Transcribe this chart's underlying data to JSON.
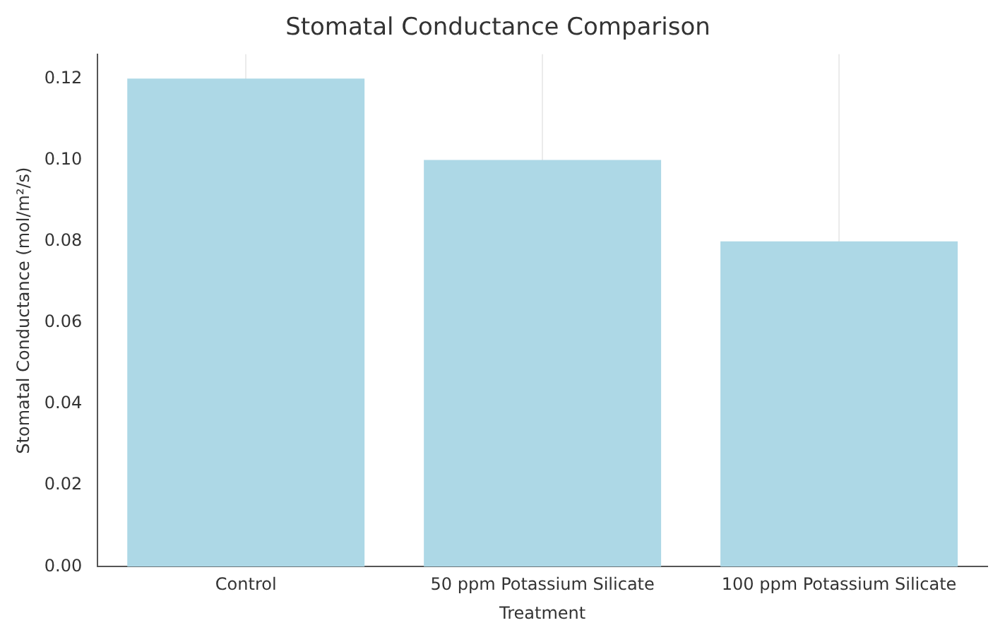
{
  "chart_data": {
    "type": "bar",
    "title": "Stomatal Conductance Comparison",
    "xlabel": "Treatment",
    "ylabel": "Stomatal Conductance (mol/m²/s)",
    "categories": [
      "Control",
      "50 ppm Potassium Silicate",
      "100 ppm Potassium Silicate"
    ],
    "values": [
      0.12,
      0.1,
      0.08
    ],
    "color": "#add8e6",
    "ylim": [
      0,
      0.126
    ],
    "yticks": [
      {
        "value": 0,
        "label": "0.00"
      },
      {
        "value": 0.02,
        "label": "0.02"
      },
      {
        "value": 0.04,
        "label": "0.04"
      },
      {
        "value": 0.06,
        "label": "0.06"
      },
      {
        "value": 0.08,
        "label": "0.08"
      },
      {
        "value": 0.1,
        "label": "0.10"
      },
      {
        "value": 0.12,
        "label": "0.12"
      }
    ],
    "grid": "x",
    "legend": false
  }
}
